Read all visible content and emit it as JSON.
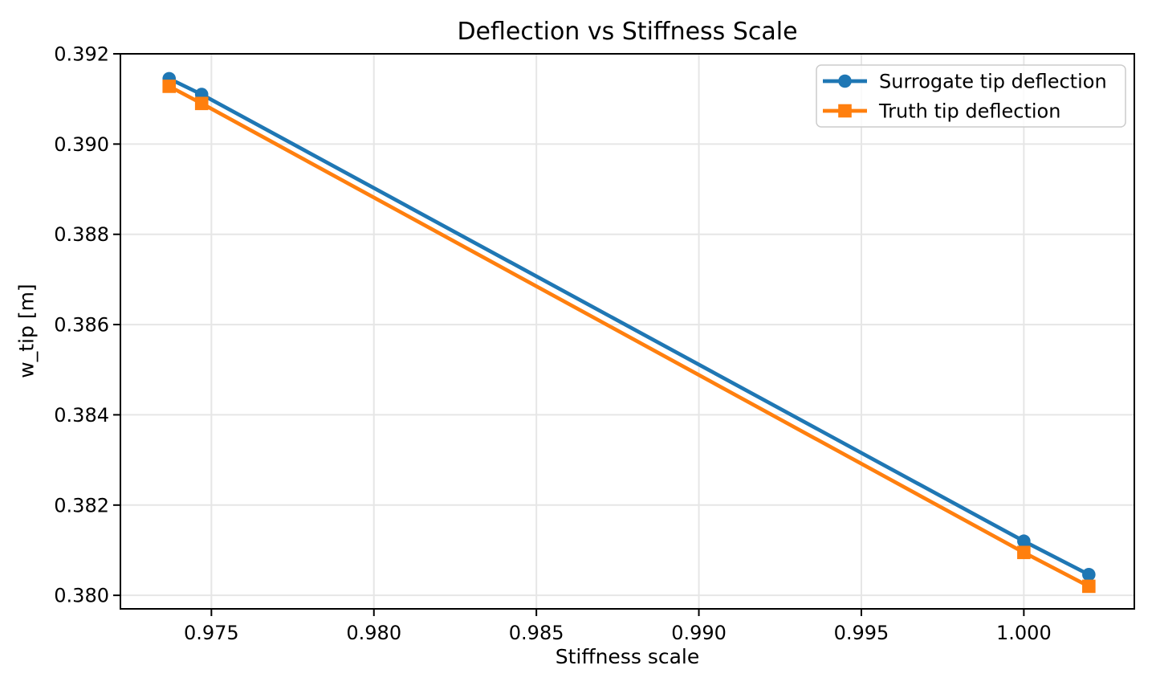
{
  "chart_data": {
    "type": "line",
    "title": "Deflection vs Stiffness Scale",
    "xlabel": "Stiffness scale",
    "ylabel": "w_tip [m]",
    "x": [
      0.9737,
      0.9747,
      1.0,
      1.002
    ],
    "series": [
      {
        "name": "Surrogate tip deflection",
        "color": "#1f77b4",
        "marker": "circle",
        "values": [
          0.39145,
          0.3911,
          0.3812,
          0.38046
        ]
      },
      {
        "name": "Truth tip deflection",
        "color": "#ff7f0e",
        "marker": "square",
        "values": [
          0.39128,
          0.3909,
          0.38095,
          0.3802
        ]
      }
    ],
    "xlim": [
      0.9722,
      1.0034
    ],
    "ylim": [
      0.3797,
      0.392
    ],
    "xticks": {
      "values": [
        0.975,
        0.98,
        0.985,
        0.99,
        0.995,
        1.0
      ],
      "labels": [
        "0.975",
        "0.980",
        "0.985",
        "0.990",
        "0.995",
        "1.000"
      ]
    },
    "yticks": {
      "values": [
        0.38,
        0.382,
        0.384,
        0.386,
        0.388,
        0.39,
        0.392
      ],
      "labels": [
        "0.380",
        "0.382",
        "0.384",
        "0.386",
        "0.388",
        "0.390",
        "0.392"
      ]
    },
    "grid": true,
    "legend": {
      "location": "upper right",
      "entries": [
        "Surrogate tip deflection",
        "Truth tip deflection"
      ]
    },
    "colors": {
      "grid": "#e6e6e6",
      "spine": "#000000",
      "text": "#000000",
      "legend_border": "#cccccc",
      "background": "#ffffff"
    }
  }
}
